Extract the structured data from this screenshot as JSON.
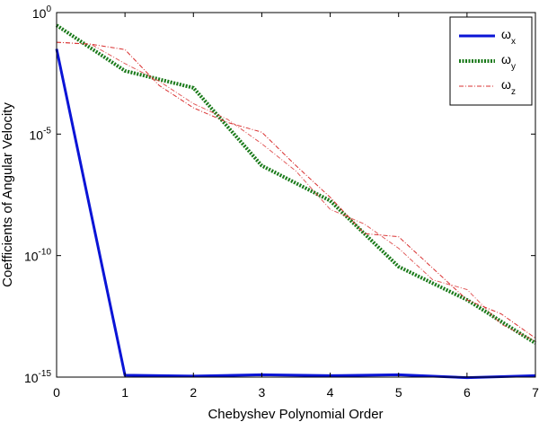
{
  "chart_data": {
    "type": "line",
    "xlabel": "Chebyshev Polynomial Order",
    "ylabel": "Coefficients of Angular Velocity",
    "xlim": [
      0,
      7
    ],
    "ylim": [
      1e-15,
      1
    ],
    "yscale": "log",
    "grid": false,
    "legend_position": "top-right",
    "x_ticks": [
      "0",
      "1",
      "2",
      "3",
      "4",
      "5",
      "6",
      "7"
    ],
    "y_ticks": [
      {
        "value": 1,
        "base": "10",
        "exp": "0"
      },
      {
        "value": 1e-05,
        "base": "10",
        "exp": "-5"
      },
      {
        "value": 1e-10,
        "base": "10",
        "exp": "-10"
      },
      {
        "value": 1e-15,
        "base": "10",
        "exp": "-15"
      }
    ],
    "series": [
      {
        "name_base": "ω",
        "name_sub": "x",
        "color": "#0a14d6",
        "style": "solid",
        "x": [
          0,
          1,
          2,
          3,
          4,
          5,
          6,
          7
        ],
        "y": [
          0.032,
          1.2e-15,
          1.1e-15,
          1.25e-15,
          1.15e-15,
          1.25e-15,
          9.5e-16,
          1.15e-15
        ]
      },
      {
        "name_base": "ω",
        "name_sub": "y",
        "color": "#1a7a1a",
        "style": "dotted",
        "x": [
          0,
          1,
          2,
          3,
          4,
          5,
          6,
          7
        ],
        "y": [
          0.3,
          0.004,
          0.0008,
          5e-07,
          1.8e-08,
          3.5e-11,
          1.5e-12,
          2.5e-14
        ]
      },
      {
        "name_base": "ω",
        "name_sub": "z",
        "color": "#d93030",
        "style": "dashdot",
        "x": [
          0,
          0.5,
          1,
          1.5,
          2,
          2.5,
          3,
          3.5,
          4,
          4.5,
          5,
          5.5,
          6,
          6.5,
          7
        ],
        "y": [
          0.06,
          0.05,
          0.03,
          0.001,
          0.00012,
          3e-05,
          1.2e-05,
          5e-07,
          2.5e-08,
          8e-10,
          6e-10,
          3e-11,
          1.5e-12,
          4e-13,
          4e-14
        ],
        "y_alt": [
          0.06,
          0.05,
          0.008,
          0.0015,
          0.00018,
          4e-05,
          4e-06,
          3e-07,
          8e-09,
          2e-09,
          2e-10,
          1e-11,
          4e-12,
          1.5e-13,
          3e-14
        ]
      }
    ]
  }
}
